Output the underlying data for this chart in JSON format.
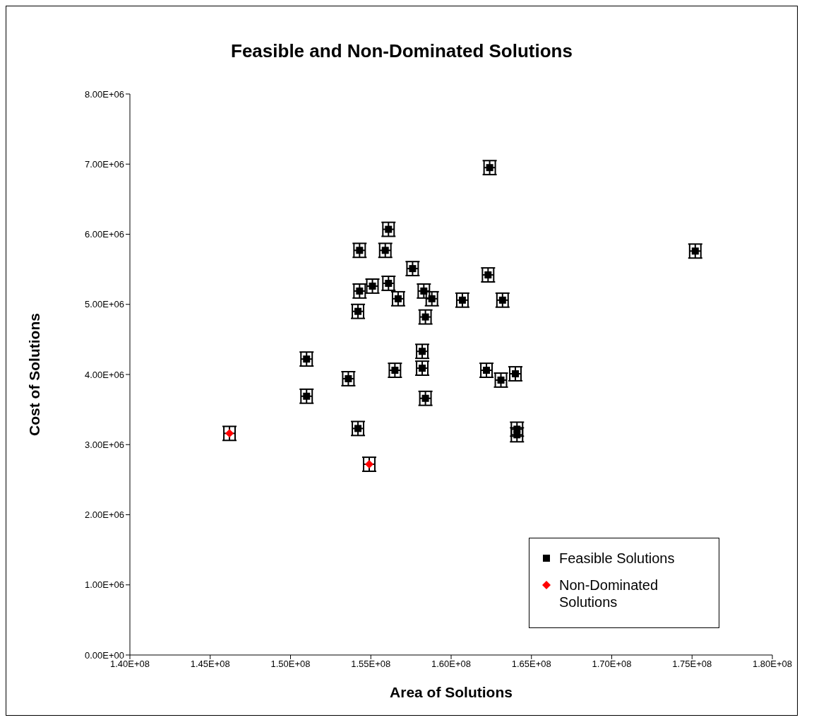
{
  "chart_data": {
    "type": "scatter",
    "title": "Feasible and Non-Dominated Solutions",
    "xlabel": "Area of Solutions",
    "ylabel": "Cost of Solutions",
    "xlim": [
      140000000,
      180000000
    ],
    "xticks": [
      {
        "value": 140000000,
        "label": "1.40E+08"
      },
      {
        "value": 145000000,
        "label": "1.45E+08"
      },
      {
        "value": 150000000,
        "label": "1.50E+08"
      },
      {
        "value": 155000000,
        "label": "1.55E+08"
      },
      {
        "value": 160000000,
        "label": "1.60E+08"
      },
      {
        "value": 165000000,
        "label": "1.65E+08"
      },
      {
        "value": 170000000,
        "label": "1.70E+08"
      },
      {
        "value": 175000000,
        "label": "1.75E+08"
      },
      {
        "value": 180000000,
        "label": "1.80E+08"
      }
    ],
    "ylim": [
      0,
      8000000
    ],
    "yticks": [
      {
        "value": 0,
        "label": "0.00E+00"
      },
      {
        "value": 1000000,
        "label": "1.00E+06"
      },
      {
        "value": 2000000,
        "label": "2.00E+06"
      },
      {
        "value": 3000000,
        "label": "3.00E+06"
      },
      {
        "value": 4000000,
        "label": "4.00E+06"
      },
      {
        "value": 5000000,
        "label": "5.00E+06"
      },
      {
        "value": 6000000,
        "label": "6.00E+06"
      },
      {
        "value": 7000000,
        "label": "7.00E+06"
      },
      {
        "value": 8000000,
        "label": "8.00E+06"
      }
    ],
    "grid": false,
    "legend": "bottom right",
    "series": [
      {
        "name": "Feasible Solutions",
        "color": "#000000",
        "marker": "square",
        "x": [
          162400000,
          156100000,
          154300000,
          155900000,
          157600000,
          175200000,
          162300000,
          156100000,
          155100000,
          154300000,
          158300000,
          156700000,
          158800000,
          160700000,
          163200000,
          154200000,
          158400000,
          151000000,
          158200000,
          158200000,
          156500000,
          162200000,
          164000000,
          163100000,
          153600000,
          151000000,
          158400000,
          154200000,
          164100000,
          164100000
        ],
        "values": [
          6950000,
          6070000,
          5770000,
          5770000,
          5510000,
          5760000,
          5420000,
          5300000,
          5260000,
          5190000,
          5190000,
          5080000,
          5080000,
          5060000,
          5060000,
          4900000,
          4820000,
          4220000,
          4330000,
          4090000,
          4060000,
          4060000,
          4010000,
          3920000,
          3940000,
          3690000,
          3660000,
          3230000,
          3220000,
          3140000
        ],
        "errors": [
          100000,
          100000,
          100000,
          100000,
          100000,
          100000,
          100000,
          100000,
          100000,
          100000,
          100000,
          100000,
          100000,
          100000,
          100000,
          100000,
          100000,
          100000,
          100000,
          100000,
          100000,
          100000,
          100000,
          100000,
          100000,
          100000,
          100000,
          100000,
          100000,
          100000
        ],
        "xerrors": [
          350000,
          350000,
          350000,
          350000,
          350000,
          350000,
          350000,
          350000,
          350000,
          350000,
          350000,
          350000,
          350000,
          350000,
          350000,
          350000,
          350000,
          350000,
          350000,
          350000,
          350000,
          350000,
          350000,
          350000,
          350000,
          350000,
          350000,
          350000,
          350000,
          350000
        ]
      },
      {
        "name": "Non-Dominated Solutions",
        "color": "#ff0000",
        "marker": "diamond",
        "x": [
          146200000,
          154900000
        ],
        "values": [
          3160000,
          2720000
        ],
        "errors": [
          100000,
          100000
        ],
        "xerrors": [
          350000,
          350000
        ]
      }
    ]
  }
}
